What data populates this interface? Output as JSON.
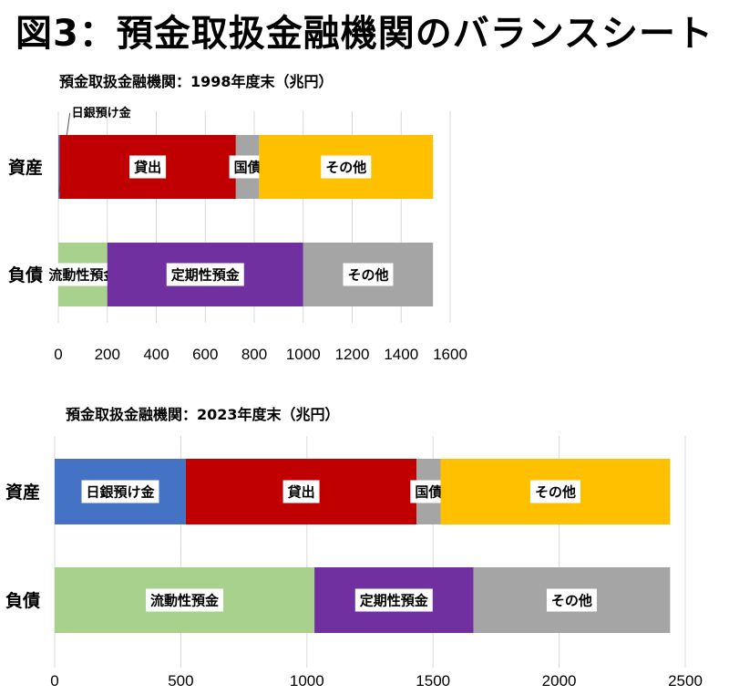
{
  "title": "図3：預金取扱金融機関のバランスシート",
  "chart_data": [
    {
      "type": "bar",
      "orientation": "horizontal",
      "stacked": true,
      "title": "預金取扱金融機関：1998年度末（兆円）",
      "categories": [
        "資産",
        "負債"
      ],
      "xlim": [
        0,
        1600
      ],
      "xticks": [
        "0",
        "200",
        "400",
        "600",
        "800",
        "1000",
        "1200",
        "1400",
        "1600"
      ],
      "grid": "vertical",
      "series": [
        {
          "category": "資産",
          "segments": [
            {
              "name": "日銀預け金",
              "value": 5,
              "color": "#4472C4"
            },
            {
              "name": "貸出",
              "value": 720,
              "color": "#C00000"
            },
            {
              "name": "国債",
              "value": 95,
              "color": "#A5A5A5"
            },
            {
              "name": "その他",
              "value": 710,
              "color": "#FFC000"
            }
          ]
        },
        {
          "category": "負債",
          "segments": [
            {
              "name": "流動性預金",
              "value": 200,
              "color": "#A9D18E"
            },
            {
              "name": "定期性預金",
              "value": 800,
              "color": "#7030A0"
            },
            {
              "name": "その他",
              "value": 530,
              "color": "#A5A5A5"
            }
          ]
        }
      ]
    },
    {
      "type": "bar",
      "orientation": "horizontal",
      "stacked": true,
      "title": "預金取扱金融機関：2023年度末（兆円）",
      "categories": [
        "資産",
        "負債"
      ],
      "xlim": [
        0,
        2500
      ],
      "xticks": [
        "0",
        "500",
        "1000",
        "1500",
        "2000",
        "2500"
      ],
      "grid": "vertical",
      "series": [
        {
          "category": "資産",
          "segments": [
            {
              "name": "日銀預け金",
              "value": 520,
              "color": "#4472C4"
            },
            {
              "name": "貸出",
              "value": 915,
              "color": "#C00000"
            },
            {
              "name": "国債",
              "value": 95,
              "color": "#A5A5A5"
            },
            {
              "name": "その他",
              "value": 910,
              "color": "#FFC000"
            }
          ]
        },
        {
          "category": "負債",
          "segments": [
            {
              "name": "流動性預金",
              "value": 1030,
              "color": "#A9D18E"
            },
            {
              "name": "定期性預金",
              "value": 630,
              "color": "#7030A0"
            },
            {
              "name": "その他",
              "value": 780,
              "color": "#A5A5A5"
            }
          ]
        }
      ]
    }
  ]
}
